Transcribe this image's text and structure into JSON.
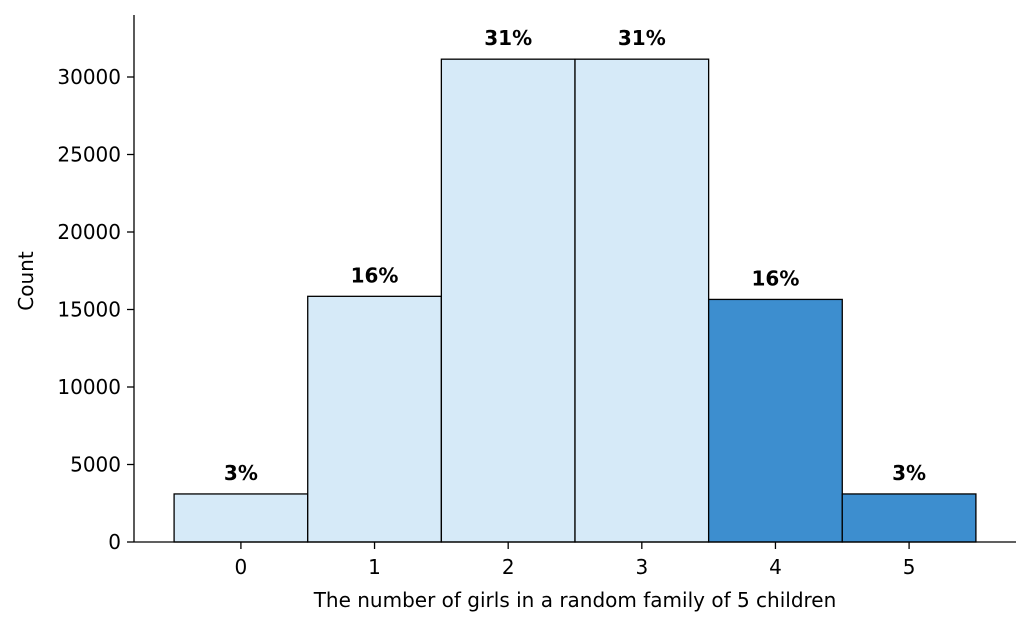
{
  "chart_data": {
    "type": "bar",
    "title": "",
    "xlabel": "The number of girls in a random family of 5 children",
    "ylabel": "Count",
    "categories": [
      "0",
      "1",
      "2",
      "3",
      "4",
      "5"
    ],
    "x": [
      0,
      1,
      2,
      3,
      4,
      5
    ],
    "values": [
      3100,
      15850,
      31150,
      31150,
      15650,
      3100
    ],
    "data_labels": [
      "3%",
      "16%",
      "31%",
      "31%",
      "16%",
      "3%"
    ],
    "highlighted": [
      false,
      false,
      false,
      false,
      true,
      true
    ],
    "ylim": [
      0,
      34000
    ],
    "xlim": [
      -0.8,
      5.8
    ],
    "yticks": [
      0,
      5000,
      10000,
      15000,
      20000,
      25000,
      30000
    ],
    "ytick_labels": [
      "0",
      "5000",
      "10000",
      "15000",
      "20000",
      "25000",
      "30000"
    ],
    "grid": false,
    "legend": "none",
    "colors": {
      "default_bar": "#d6eaf8",
      "highlight_bar": "#3d8ecf",
      "edge": "#000000",
      "axis": "#000000"
    }
  }
}
